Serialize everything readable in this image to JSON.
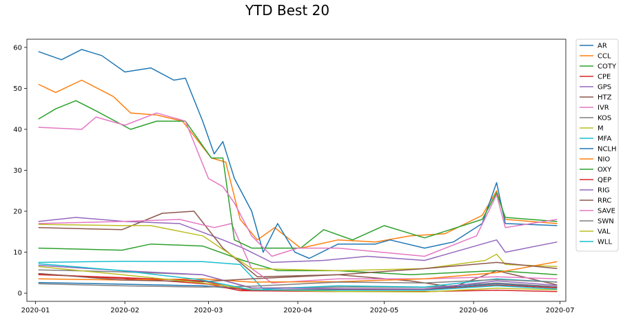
{
  "chart_data": {
    "type": "line",
    "title": "YTD Best 20",
    "xlabel": "",
    "ylabel": "",
    "ylim": [
      -2,
      62
    ],
    "xlim": [
      "2019-12-29",
      "2020-07-03"
    ],
    "x_ticks": [
      "2020-01-01",
      "2020-02-01",
      "2020-03-01",
      "2020-04-01",
      "2020-05-01",
      "2020-06-01",
      "2020-07-01"
    ],
    "x_tick_labels": [
      "2020-01",
      "2020-02",
      "2020-03",
      "2020-04",
      "2020-05",
      "2020-06",
      "2020-07"
    ],
    "y_ticks": [
      0,
      10,
      20,
      30,
      40,
      50,
      60
    ],
    "grid": false,
    "legend_position": "outside-right",
    "series": [
      {
        "name": "AR",
        "color": "#1f77b4",
        "points": [
          [
            "2020-01-02",
            2.6
          ],
          [
            "2020-01-31",
            2.2
          ],
          [
            "2020-02-28",
            1.8
          ],
          [
            "2020-03-16",
            0.8
          ],
          [
            "2020-04-15",
            0.9
          ],
          [
            "2020-05-15",
            1.0
          ],
          [
            "2020-06-09",
            2.3
          ],
          [
            "2020-06-30",
            1.5
          ]
        ]
      },
      {
        "name": "CCL",
        "color": "#ff7f0e",
        "points": [
          [
            "2020-01-02",
            51
          ],
          [
            "2020-01-08",
            49
          ],
          [
            "2020-01-17",
            52
          ],
          [
            "2020-01-28",
            48
          ],
          [
            "2020-02-03",
            44
          ],
          [
            "2020-02-12",
            43.5
          ],
          [
            "2020-02-21",
            42
          ],
          [
            "2020-03-02",
            33
          ],
          [
            "2020-03-07",
            32
          ],
          [
            "2020-03-12",
            18
          ],
          [
            "2020-03-18",
            13
          ],
          [
            "2020-03-24",
            16
          ],
          [
            "2020-04-02",
            11
          ],
          [
            "2020-04-15",
            13
          ],
          [
            "2020-04-28",
            12.5
          ],
          [
            "2020-05-10",
            14
          ],
          [
            "2020-05-22",
            14.5
          ],
          [
            "2020-06-04",
            19
          ],
          [
            "2020-06-09",
            25
          ],
          [
            "2020-06-12",
            18
          ],
          [
            "2020-06-30",
            17
          ]
        ]
      },
      {
        "name": "COTY",
        "color": "#2ca02c",
        "points": [
          [
            "2020-01-02",
            11
          ],
          [
            "2020-01-31",
            10.5
          ],
          [
            "2020-02-10",
            12
          ],
          [
            "2020-02-28",
            11.5
          ],
          [
            "2020-03-13",
            8
          ],
          [
            "2020-03-25",
            5.5
          ],
          [
            "2020-04-15",
            5.5
          ],
          [
            "2020-05-10",
            4.5
          ],
          [
            "2020-06-09",
            5.5
          ],
          [
            "2020-06-30",
            4.5
          ]
        ]
      },
      {
        "name": "CPE",
        "color": "#d62728",
        "points": [
          [
            "2020-01-02",
            4.7
          ],
          [
            "2020-01-20",
            4.0
          ],
          [
            "2020-02-15",
            3.0
          ],
          [
            "2020-03-01",
            2.2
          ],
          [
            "2020-03-12",
            0.6
          ],
          [
            "2020-04-15",
            0.4
          ],
          [
            "2020-05-15",
            0.4
          ],
          [
            "2020-06-09",
            0.7
          ],
          [
            "2020-06-30",
            0.4
          ]
        ]
      },
      {
        "name": "GPS",
        "color": "#9467bd",
        "points": [
          [
            "2020-01-02",
            17.5
          ],
          [
            "2020-01-15",
            18.5
          ],
          [
            "2020-02-01",
            17.5
          ],
          [
            "2020-02-20",
            17
          ],
          [
            "2020-03-06",
            13
          ],
          [
            "2020-03-13",
            11
          ],
          [
            "2020-03-23",
            7.5
          ],
          [
            "2020-04-10",
            8
          ],
          [
            "2020-04-25",
            9
          ],
          [
            "2020-05-15",
            8
          ],
          [
            "2020-06-09",
            13
          ],
          [
            "2020-06-12",
            10
          ],
          [
            "2020-06-30",
            12.5
          ]
        ]
      },
      {
        "name": "HTZ",
        "color": "#8c564b",
        "points": [
          [
            "2020-01-02",
            16
          ],
          [
            "2020-01-31",
            15.5
          ],
          [
            "2020-02-14",
            19.5
          ],
          [
            "2020-02-25",
            20
          ],
          [
            "2020-03-06",
            11
          ],
          [
            "2020-03-18",
            4
          ],
          [
            "2020-04-15",
            4.5
          ],
          [
            "2020-05-10",
            3
          ],
          [
            "2020-05-25",
            1.5
          ],
          [
            "2020-06-09",
            5.5
          ],
          [
            "2020-06-30",
            2
          ]
        ]
      },
      {
        "name": "IVR",
        "color": "#e377c2",
        "points": [
          [
            "2020-01-02",
            17
          ],
          [
            "2020-01-31",
            17.5
          ],
          [
            "2020-02-20",
            18
          ],
          [
            "2020-03-03",
            16
          ],
          [
            "2020-03-09",
            17
          ],
          [
            "2020-03-16",
            6
          ],
          [
            "2020-03-23",
            2.5
          ],
          [
            "2020-04-15",
            3.5
          ],
          [
            "2020-05-15",
            3.5
          ],
          [
            "2020-06-09",
            4
          ],
          [
            "2020-06-30",
            3.5
          ]
        ]
      },
      {
        "name": "KOS",
        "color": "#7f7f7f",
        "points": [
          [
            "2020-01-02",
            5.7
          ],
          [
            "2020-01-31",
            5.2
          ],
          [
            "2020-02-28",
            4.5
          ],
          [
            "2020-03-16",
            1.2
          ],
          [
            "2020-04-15",
            1.5
          ],
          [
            "2020-05-15",
            1.4
          ],
          [
            "2020-06-09",
            2.5
          ],
          [
            "2020-06-30",
            1.6
          ]
        ]
      },
      {
        "name": "M",
        "color": "#bcbd22",
        "points": [
          [
            "2020-01-02",
            16.8
          ],
          [
            "2020-01-31",
            16.5
          ],
          [
            "2020-02-10",
            16.5
          ],
          [
            "2020-02-28",
            14
          ],
          [
            "2020-03-16",
            6
          ],
          [
            "2020-04-15",
            5.5
          ],
          [
            "2020-05-15",
            6
          ],
          [
            "2020-06-05",
            8
          ],
          [
            "2020-06-09",
            9.5
          ],
          [
            "2020-06-12",
            7
          ],
          [
            "2020-06-30",
            6.5
          ]
        ]
      },
      {
        "name": "MFA",
        "color": "#17becf",
        "points": [
          [
            "2020-01-02",
            7.5
          ],
          [
            "2020-01-31",
            7.8
          ],
          [
            "2020-02-28",
            7.7
          ],
          [
            "2020-03-12",
            7
          ],
          [
            "2020-03-20",
            1
          ],
          [
            "2020-04-15",
            1.8
          ],
          [
            "2020-05-15",
            1.5
          ],
          [
            "2020-06-09",
            3.5
          ],
          [
            "2020-06-30",
            2.7
          ]
        ]
      },
      {
        "name": "NCLH",
        "color": "#1f77b4",
        "points": [
          [
            "2020-01-02",
            59
          ],
          [
            "2020-01-10",
            57
          ],
          [
            "2020-01-17",
            59.5
          ],
          [
            "2020-01-24",
            58
          ],
          [
            "2020-02-01",
            54
          ],
          [
            "2020-02-10",
            55
          ],
          [
            "2020-02-18",
            52
          ],
          [
            "2020-02-22",
            52.5
          ],
          [
            "2020-02-28",
            42
          ],
          [
            "2020-03-03",
            34
          ],
          [
            "2020-03-06",
            37
          ],
          [
            "2020-03-10",
            28
          ],
          [
            "2020-03-16",
            20
          ],
          [
            "2020-03-20",
            10
          ],
          [
            "2020-03-25",
            17
          ],
          [
            "2020-03-31",
            10
          ],
          [
            "2020-04-05",
            8.5
          ],
          [
            "2020-04-15",
            12
          ],
          [
            "2020-04-28",
            12
          ],
          [
            "2020-05-03",
            13
          ],
          [
            "2020-05-15",
            11
          ],
          [
            "2020-05-25",
            12.5
          ],
          [
            "2020-06-04",
            17
          ],
          [
            "2020-06-09",
            27
          ],
          [
            "2020-06-12",
            17
          ],
          [
            "2020-06-30",
            16.5
          ]
        ]
      },
      {
        "name": "NIO",
        "color": "#ff7f0e",
        "points": [
          [
            "2020-01-02",
            3.5
          ],
          [
            "2020-01-31",
            3.2
          ],
          [
            "2020-02-28",
            3.5
          ],
          [
            "2020-03-16",
            2.7
          ],
          [
            "2020-04-15",
            2.8
          ],
          [
            "2020-05-15",
            3.5
          ],
          [
            "2020-06-09",
            5
          ],
          [
            "2020-06-30",
            7.7
          ]
        ]
      },
      {
        "name": "OXY",
        "color": "#2ca02c",
        "points": [
          [
            "2020-01-02",
            42.5
          ],
          [
            "2020-01-08",
            45
          ],
          [
            "2020-01-15",
            47
          ],
          [
            "2020-01-22",
            44.5
          ],
          [
            "2020-02-03",
            40
          ],
          [
            "2020-02-12",
            42
          ],
          [
            "2020-02-22",
            42
          ],
          [
            "2020-03-02",
            33
          ],
          [
            "2020-03-06",
            33
          ],
          [
            "2020-03-10",
            13
          ],
          [
            "2020-03-16",
            11
          ],
          [
            "2020-03-23",
            11
          ],
          [
            "2020-04-02",
            11
          ],
          [
            "2020-04-10",
            15.5
          ],
          [
            "2020-04-20",
            13
          ],
          [
            "2020-05-01",
            16.5
          ],
          [
            "2020-05-15",
            13.5
          ],
          [
            "2020-06-04",
            18
          ],
          [
            "2020-06-09",
            24.5
          ],
          [
            "2020-06-12",
            18.5
          ],
          [
            "2020-06-30",
            17.5
          ]
        ]
      },
      {
        "name": "QEP",
        "color": "#d62728",
        "points": [
          [
            "2020-01-02",
            4.5
          ],
          [
            "2020-01-31",
            3.8
          ],
          [
            "2020-02-28",
            3.0
          ],
          [
            "2020-03-13",
            0.8
          ],
          [
            "2020-04-15",
            0.8
          ],
          [
            "2020-05-15",
            0.8
          ],
          [
            "2020-06-09",
            2.0
          ],
          [
            "2020-06-30",
            1.3
          ]
        ]
      },
      {
        "name": "RIG",
        "color": "#9467bd",
        "points": [
          [
            "2020-01-02",
            6.8
          ],
          [
            "2020-01-31",
            5.5
          ],
          [
            "2020-02-28",
            4.5
          ],
          [
            "2020-03-16",
            1.3
          ],
          [
            "2020-04-15",
            1.1
          ],
          [
            "2020-05-15",
            1.0
          ],
          [
            "2020-06-09",
            3.0
          ],
          [
            "2020-06-30",
            1.9
          ]
        ]
      },
      {
        "name": "RRC",
        "color": "#8c564b",
        "points": [
          [
            "2020-01-02",
            4.8
          ],
          [
            "2020-01-31",
            3.2
          ],
          [
            "2020-02-28",
            2.8
          ],
          [
            "2020-03-16",
            3.5
          ],
          [
            "2020-04-15",
            4.5
          ],
          [
            "2020-05-15",
            6
          ],
          [
            "2020-06-09",
            7.5
          ],
          [
            "2020-06-30",
            6
          ]
        ]
      },
      {
        "name": "SAVE",
        "color": "#e377c2",
        "points": [
          [
            "2020-01-02",
            40.5
          ],
          [
            "2020-01-17",
            40
          ],
          [
            "2020-01-22",
            43
          ],
          [
            "2020-02-01",
            41
          ],
          [
            "2020-02-12",
            44
          ],
          [
            "2020-02-22",
            42
          ],
          [
            "2020-03-01",
            28
          ],
          [
            "2020-03-06",
            26
          ],
          [
            "2020-03-10",
            22
          ],
          [
            "2020-03-16",
            14
          ],
          [
            "2020-03-23",
            9
          ],
          [
            "2020-04-01",
            11
          ],
          [
            "2020-04-15",
            11
          ],
          [
            "2020-05-15",
            9
          ],
          [
            "2020-06-02",
            14
          ],
          [
            "2020-06-09",
            24
          ],
          [
            "2020-06-12",
            16
          ],
          [
            "2020-06-30",
            18
          ]
        ]
      },
      {
        "name": "SWN",
        "color": "#7f7f7f",
        "points": [
          [
            "2020-01-02",
            2.3
          ],
          [
            "2020-01-31",
            1.8
          ],
          [
            "2020-02-28",
            1.5
          ],
          [
            "2020-03-16",
            1.7
          ],
          [
            "2020-04-15",
            2.7
          ],
          [
            "2020-05-15",
            2.5
          ],
          [
            "2020-06-09",
            3.3
          ],
          [
            "2020-06-30",
            2.7
          ]
        ]
      },
      {
        "name": "VAL",
        "color": "#bcbd22",
        "points": [
          [
            "2020-01-02",
            6.5
          ],
          [
            "2020-01-31",
            4.5
          ],
          [
            "2020-02-28",
            2.5
          ],
          [
            "2020-03-16",
            0.9
          ],
          [
            "2020-04-15",
            0.4
          ],
          [
            "2020-05-15",
            0.3
          ],
          [
            "2020-06-09",
            1.2
          ],
          [
            "2020-06-30",
            0.8
          ]
        ]
      },
      {
        "name": "WLL",
        "color": "#17becf",
        "points": [
          [
            "2020-01-02",
            7.2
          ],
          [
            "2020-01-31",
            5.5
          ],
          [
            "2020-02-28",
            3.2
          ],
          [
            "2020-03-16",
            0.8
          ],
          [
            "2020-04-15",
            0.7
          ],
          [
            "2020-05-15",
            0.7
          ],
          [
            "2020-06-09",
            1.8
          ],
          [
            "2020-06-30",
            1.0
          ]
        ]
      }
    ]
  }
}
